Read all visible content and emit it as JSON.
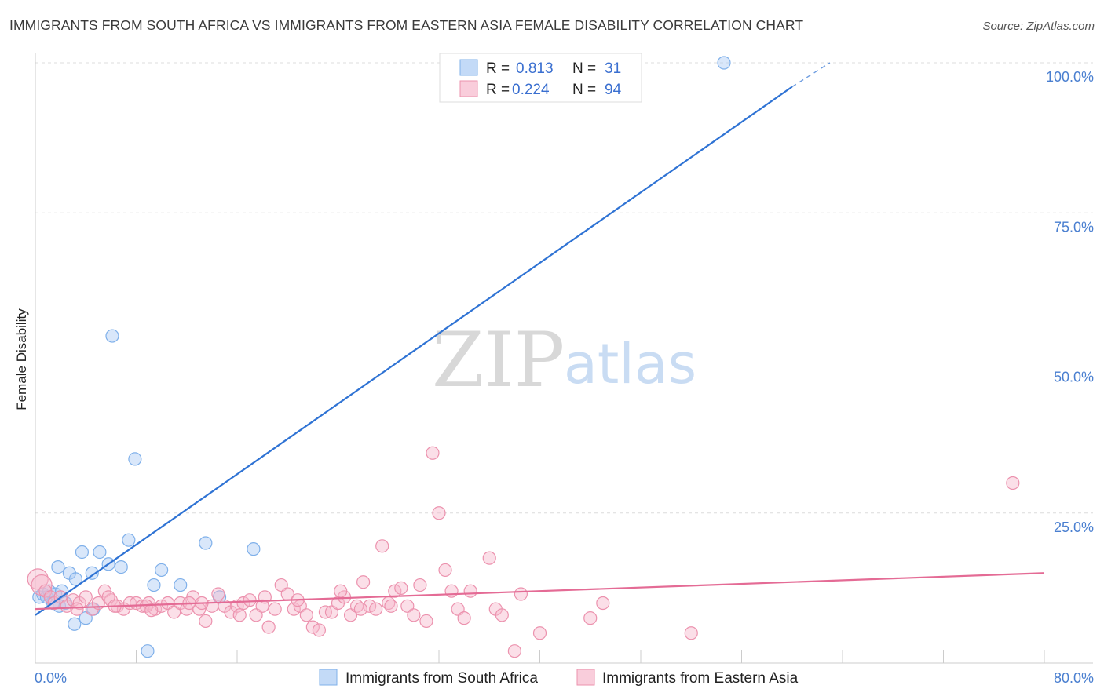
{
  "chart_data": {
    "type": "scatter",
    "title": "IMMIGRANTS FROM SOUTH AFRICA VS IMMIGRANTS FROM EASTERN ASIA FEMALE DISABILITY CORRELATION CHART",
    "source": "Source: ZipAtlas.com",
    "ylabel": "Female Disability",
    "xlim": [
      0,
      80
    ],
    "ylim": [
      0,
      100
    ],
    "x_tick_labels": [
      "0.0%",
      "80.0%"
    ],
    "y_ticks": [
      {
        "value": 25,
        "label": "25.0%"
      },
      {
        "value": 50,
        "label": "50.0%"
      },
      {
        "value": 75,
        "label": "75.0%"
      },
      {
        "value": 100,
        "label": "100.0%"
      }
    ],
    "grid": true,
    "legend": {
      "r_label": "R =",
      "n_label": "N =",
      "entries": [
        {
          "r": "0.813",
          "n": "31"
        },
        {
          "r": "0.224",
          "n": "94"
        }
      ]
    },
    "series": [
      {
        "name": "Immigrants from South Africa",
        "color": "#7fb0ea",
        "fill": "rgba(170,202,243,0.45)",
        "line_color": "#2f73d4",
        "trend": {
          "x0": 0,
          "y0": 8,
          "x1": 60,
          "y1": 96,
          "dash_to_x": 63,
          "dash_to_y": 100
        },
        "points": [
          [
            0.3,
            11
          ],
          [
            0.6,
            11.5
          ],
          [
            0.9,
            11
          ],
          [
            1.1,
            12
          ],
          [
            1.4,
            10
          ],
          [
            1.6,
            11.5
          ],
          [
            1.9,
            9.5
          ],
          [
            2.1,
            12
          ],
          [
            1.8,
            16
          ],
          [
            2.7,
            15
          ],
          [
            3.2,
            14
          ],
          [
            3.7,
            18.5
          ],
          [
            4.5,
            15
          ],
          [
            5.1,
            18.5
          ],
          [
            5.8,
            16.5
          ],
          [
            6.8,
            16
          ],
          [
            4.6,
            9
          ],
          [
            4.0,
            7.5
          ],
          [
            3.1,
            6.5
          ],
          [
            9.4,
            13
          ],
          [
            10.0,
            15.5
          ],
          [
            11.5,
            13
          ],
          [
            7.4,
            20.5
          ],
          [
            13.5,
            20
          ],
          [
            14.6,
            11
          ],
          [
            17.3,
            19
          ],
          [
            6.1,
            54.5
          ],
          [
            7.9,
            34
          ],
          [
            8.9,
            2
          ],
          [
            2.4,
            10
          ],
          [
            54.6,
            100
          ]
        ]
      },
      {
        "name": "Immigrants from Eastern Asia",
        "color": "#ec92ae",
        "fill": "rgba(246,184,204,0.45)",
        "line_color": "#e46b95",
        "trend": {
          "x0": 0,
          "y0": 9,
          "x1": 80,
          "y1": 15
        },
        "points": [
          [
            0.2,
            14
          ],
          [
            0.5,
            13
          ],
          [
            0.8,
            12
          ],
          [
            1.2,
            11
          ],
          [
            1.5,
            10
          ],
          [
            2.0,
            11
          ],
          [
            2.5,
            9.5
          ],
          [
            3.0,
            10.5
          ],
          [
            3.5,
            10
          ],
          [
            4.0,
            11
          ],
          [
            4.5,
            9
          ],
          [
            5.0,
            10
          ],
          [
            5.5,
            12
          ],
          [
            6.0,
            10.5
          ],
          [
            6.5,
            9.5
          ],
          [
            7.0,
            9
          ],
          [
            7.5,
            10
          ],
          [
            8.0,
            10
          ],
          [
            8.5,
            9.5
          ],
          [
            9.0,
            10
          ],
          [
            9.5,
            9
          ],
          [
            10.0,
            9.5
          ],
          [
            10.5,
            10
          ],
          [
            11.0,
            8.5
          ],
          [
            11.5,
            10
          ],
          [
            12.0,
            9
          ],
          [
            12.5,
            11
          ],
          [
            13.0,
            9
          ],
          [
            13.5,
            7
          ],
          [
            14.0,
            9.5
          ],
          [
            14.5,
            11.5
          ],
          [
            15.0,
            9.5
          ],
          [
            15.5,
            8.5
          ],
          [
            16.0,
            9.5
          ],
          [
            16.5,
            10
          ],
          [
            17.0,
            10.5
          ],
          [
            17.5,
            8
          ],
          [
            18.0,
            9.5
          ],
          [
            18.5,
            6
          ],
          [
            19.0,
            9
          ],
          [
            19.5,
            13
          ],
          [
            20.0,
            11.5
          ],
          [
            20.5,
            9
          ],
          [
            21.0,
            9.5
          ],
          [
            21.5,
            8
          ],
          [
            22.0,
            6
          ],
          [
            22.5,
            5.5
          ],
          [
            23.0,
            8.5
          ],
          [
            23.5,
            8.5
          ],
          [
            24.0,
            10
          ],
          [
            24.5,
            11
          ],
          [
            25.0,
            8
          ],
          [
            25.5,
            9.5
          ],
          [
            26.0,
            13.5
          ],
          [
            26.5,
            9.5
          ],
          [
            27.0,
            9
          ],
          [
            27.5,
            19.5
          ],
          [
            28.0,
            10
          ],
          [
            28.5,
            12
          ],
          [
            29.0,
            12.5
          ],
          [
            29.5,
            9.5
          ],
          [
            30.0,
            8
          ],
          [
            30.5,
            13
          ],
          [
            31.0,
            7
          ],
          [
            31.5,
            35
          ],
          [
            32.0,
            25
          ],
          [
            32.5,
            15.5
          ],
          [
            33.0,
            12
          ],
          [
            33.5,
            9
          ],
          [
            34.0,
            7.5
          ],
          [
            34.5,
            12
          ],
          [
            36.0,
            17.5
          ],
          [
            36.5,
            9
          ],
          [
            37.0,
            8
          ],
          [
            38.0,
            2
          ],
          [
            38.5,
            11.5
          ],
          [
            40.0,
            5
          ],
          [
            44.0,
            7.5
          ],
          [
            45.0,
            10
          ],
          [
            52.0,
            5
          ],
          [
            77.5,
            30
          ],
          [
            5.8,
            11
          ],
          [
            8.8,
            9.5
          ],
          [
            12.2,
            10
          ],
          [
            16.2,
            8
          ],
          [
            20.8,
            10.5
          ],
          [
            24.2,
            12
          ],
          [
            28.2,
            9.5
          ],
          [
            3.3,
            9
          ],
          [
            6.3,
            9.5
          ],
          [
            9.2,
            8.8
          ],
          [
            13.2,
            10
          ],
          [
            18.2,
            11
          ],
          [
            25.8,
            9
          ]
        ]
      }
    ]
  },
  "legend_bottom": [
    "Immigrants from South Africa",
    "Immigrants from Eastern Asia"
  ],
  "watermark": {
    "zip": "ZIP",
    "atlas": "atlas"
  }
}
